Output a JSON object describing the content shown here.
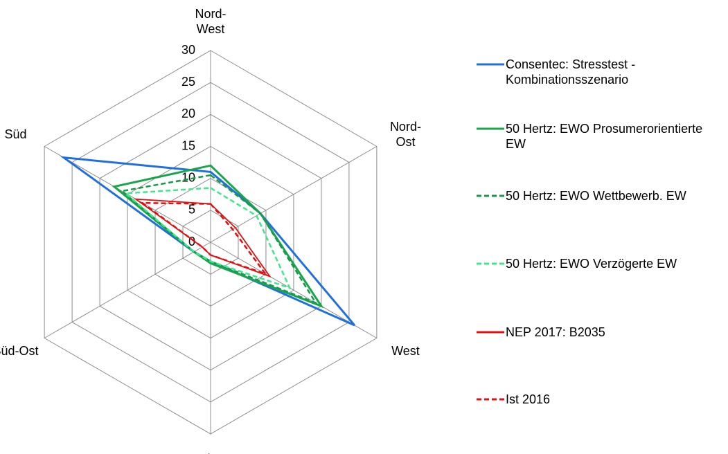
{
  "chart_data": {
    "type": "radar",
    "categories": [
      "Nord-West",
      "Nord-Ost",
      "West",
      "Mitte",
      "Süd-Ost",
      "Süd"
    ],
    "rlim": [
      0,
      30
    ],
    "rticks": [
      0,
      5,
      10,
      15,
      20,
      25,
      30
    ],
    "grid": true,
    "legend": "right",
    "series": [
      {
        "name": "Consentec: Stresstest - Kombinationsszenario",
        "color": "#1f6fe0",
        "dashed": false,
        "values": [
          11,
          9,
          26,
          3,
          3,
          26.5
        ]
      },
      {
        "name": "50 Hertz: EWO Prosumerorientierte EW",
        "color": "#1aa54a",
        "dashed": false,
        "values": [
          12,
          9,
          20,
          3.3,
          3,
          17.4
        ]
      },
      {
        "name": "50 Hertz: EWO Wettbewerb. EW",
        "color": "#149a4a",
        "dashed": true,
        "values": [
          10.5,
          9,
          19,
          3,
          3,
          16
        ]
      },
      {
        "name": "50 Hertz: EWO Verzögerte EW",
        "color": "#3ee88a",
        "dashed": true,
        "values": [
          8.5,
          8.3,
          14.3,
          3,
          3,
          15.3
        ]
      },
      {
        "name": "NEP 2017: B2035",
        "color": "#e01010",
        "dashed": false,
        "values": [
          6,
          4.5,
          10.7,
          2,
          1.5,
          13.5
        ]
      },
      {
        "name": "Ist 2016",
        "color": "#e01010",
        "dashed": true,
        "values": [
          6,
          4,
          9.9,
          2,
          1.5,
          12.3
        ]
      }
    ]
  }
}
